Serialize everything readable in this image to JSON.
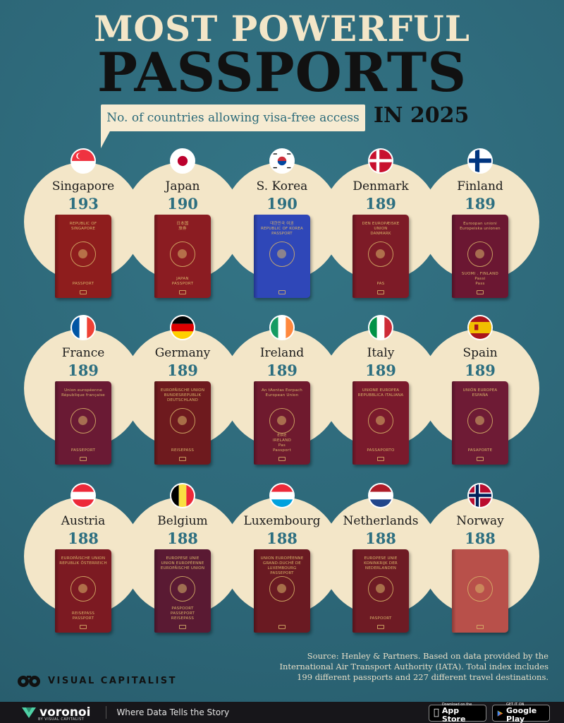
{
  "header": {
    "title_line1": "MOST POWERFUL",
    "title_line2": "PASSPORTS",
    "subtitle": "No. of countries allowing visa-free access",
    "year_label": "IN 2025"
  },
  "chart_data": {
    "type": "table",
    "title": "MOST POWERFUL PASSPORTS IN 2025",
    "subtitle": "No. of countries allowing visa-free access",
    "rows": [
      {
        "country": "Singapore",
        "value": 193,
        "value_label": "193",
        "flag": "singapore-flag-icon",
        "cover_color": "#8e1d1d",
        "cover_top": "REPUBLIC OF\nSINGAPORE",
        "cover_bottom": "PASSPORT"
      },
      {
        "country": "Japan",
        "value": 190,
        "value_label": "190",
        "flag": "japan-flag-icon",
        "cover_color": "#8b1c22",
        "cover_top": "日本国\n旅券",
        "cover_bottom": "JAPAN\nPASSPORT"
      },
      {
        "country": "S. Korea",
        "value": 190,
        "value_label": "190",
        "flag": "south-korea-flag-icon",
        "cover_color": "#2f47b8",
        "cover_top": "대한민국 여권\nREPUBLIC OF KOREA\nPASSPORT",
        "cover_bottom": ""
      },
      {
        "country": "Denmark",
        "value": 189,
        "value_label": "189",
        "flag": "denmark-flag-icon",
        "cover_color": "#7d1b27",
        "cover_top": "DEN EUROPÆISKE UNION\nDANMARK",
        "cover_bottom": "PAS"
      },
      {
        "country": "Finland",
        "value": 189,
        "value_label": "189",
        "flag": "finland-flag-icon",
        "cover_color": "#6b1732",
        "cover_top": "Euroopan unioni\nEuropeiska unionen",
        "cover_bottom": "SUOMI . FINLAND\nPassi\nPass"
      },
      {
        "country": "France",
        "value": 189,
        "value_label": "189",
        "flag": "france-flag-icon",
        "cover_color": "#6a1a34",
        "cover_top": "Union européenne\nRépublique française",
        "cover_bottom": "PASSEPORT"
      },
      {
        "country": "Germany",
        "value": 189,
        "value_label": "189",
        "flag": "germany-flag-icon",
        "cover_color": "#6e1a1e",
        "cover_top": "EUROPÄISCHE UNION\nBUNDESREPUBLIK\nDEUTSCHLAND",
        "cover_bottom": "REISEPASS"
      },
      {
        "country": "Ireland",
        "value": 189,
        "value_label": "189",
        "flag": "ireland-flag-icon",
        "cover_color": "#6f1a2e",
        "cover_top": "An tAontas Eorpach\nEuropean Union",
        "cover_bottom": "ÉIRE\nIRELAND\nPas\nPassport"
      },
      {
        "country": "Italy",
        "value": 189,
        "value_label": "189",
        "flag": "italy-flag-icon",
        "cover_color": "#7a1a2c",
        "cover_top": "UNIONE EUROPEA\nREPUBBLICA ITALIANA",
        "cover_bottom": "PASSAPORTO"
      },
      {
        "country": "Spain",
        "value": 189,
        "value_label": "189",
        "flag": "spain-flag-icon",
        "cover_color": "#6e1b35",
        "cover_top": "UNIÓN EUROPEA\nESPAÑA",
        "cover_bottom": "PASAPORTE"
      },
      {
        "country": "Austria",
        "value": 188,
        "value_label": "188",
        "flag": "austria-flag-icon",
        "cover_color": "#7c1a22",
        "cover_top": "EUROPÄISCHE UNION\nREPUBLIK ÖSTERREICH",
        "cover_bottom": "REISEPASS\nPASSPORT"
      },
      {
        "country": "Belgium",
        "value": 188,
        "value_label": "188",
        "flag": "belgium-flag-icon",
        "cover_color": "#5a1a33",
        "cover_top": "EUROPESE UNIE\nUNION EUROPÉENNE\nEUROPÄISCHE UNION",
        "cover_bottom": "PASPOORT\nPASSEPORT\nREISEPASS"
      },
      {
        "country": "Luxembourg",
        "value": 188,
        "value_label": "188",
        "flag": "luxembourg-flag-icon",
        "cover_color": "#6a1a22",
        "cover_top": "UNION EUROPÉENNE\nGRAND-DUCHÉ DE LUXEMBOURG\nPASSEPORT",
        "cover_bottom": ""
      },
      {
        "country": "Netherlands",
        "value": 188,
        "value_label": "188",
        "flag": "netherlands-flag-icon",
        "cover_color": "#6e1b24",
        "cover_top": "EUROPESE UNIE\nKONINKRIJK DER NEDERLANDEN",
        "cover_bottom": "PASPOORT"
      },
      {
        "country": "Norway",
        "value": 188,
        "value_label": "188",
        "flag": "norway-flag-icon",
        "cover_color": "#b8504a",
        "cover_top": "",
        "cover_bottom": ""
      }
    ]
  },
  "source": {
    "line1": "Source: Henley & Partners. Based on data provided by the",
    "line2": "International Air Transport Authority (IATA). Total index includes",
    "line3": "199 different passports and 227 different travel destinations."
  },
  "brand": {
    "name": "VISUAL CAPITALIST",
    "icon": "visual-capitalist-logo-icon"
  },
  "footer": {
    "logo_text": "voronoi",
    "logo_sub": "BY VISUAL CAPITALIST",
    "tagline": "Where Data Tells the Story",
    "app_store_small": "Download on the",
    "app_store_big": "App Store",
    "play_small": "GET IT ON",
    "play_big": "Google Play",
    "bg_color": "#17161a"
  },
  "colors": {
    "background": "#2f6b7c",
    "disc": "#f3e6c8",
    "value_text": "#2d6f80",
    "title_light": "#f3e6c8",
    "title_dark": "#111111"
  }
}
